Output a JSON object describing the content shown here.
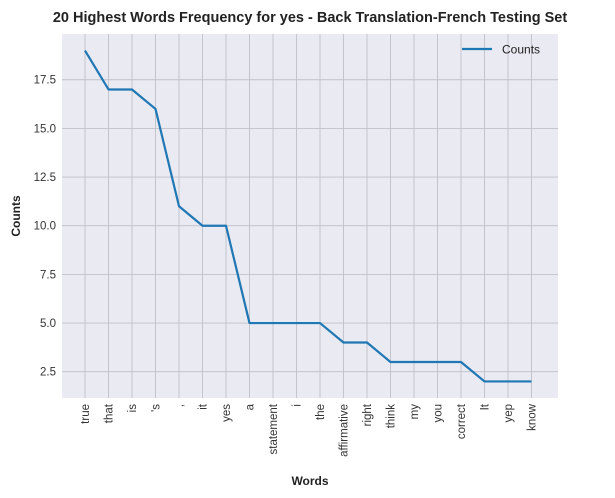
{
  "chart_data": {
    "type": "line",
    "title": "20 Highest Words Frequency for yes - Back Translation-French Testing Set",
    "xlabel": "Words",
    "ylabel": "Counts",
    "categories": [
      "true",
      "that",
      "is",
      "'s",
      ",",
      "it",
      "yes",
      "a",
      "statement",
      "i",
      "the",
      "affirmative",
      "right",
      "think",
      "my",
      "you",
      "correct",
      "It",
      "yep",
      "know"
    ],
    "series": [
      {
        "name": "Counts",
        "values": [
          19,
          17,
          17,
          16,
          11,
          10,
          10,
          5,
          5,
          5,
          5,
          4,
          4,
          3,
          3,
          3,
          3,
          2,
          2,
          2
        ],
        "color": "#1f77b4"
      }
    ],
    "ylim": [
      1.15,
      19.85
    ],
    "yticks": [
      2.5,
      5.0,
      7.5,
      10.0,
      12.5,
      15.0,
      17.5
    ],
    "ytick_labels": [
      "2.5",
      "5.0",
      "7.5",
      "10.0",
      "12.5",
      "15.0",
      "17.5"
    ],
    "grid": true,
    "legend_position": "top-right",
    "background_color": "#eaeaf2",
    "grid_color": "#c0c0c8"
  }
}
